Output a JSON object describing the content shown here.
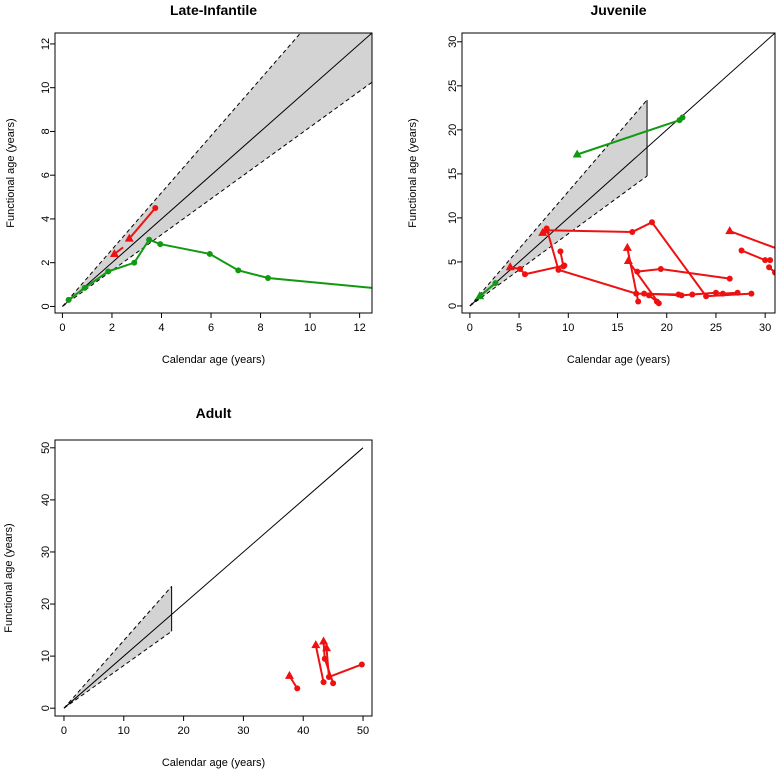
{
  "chart_data": [
    {
      "type": "line",
      "title": "Late-Infantile",
      "xlabel": "Calendar age (years)",
      "ylabel": "Functional age (years)",
      "xlim": [
        -0.3,
        12.5
      ],
      "ylim": [
        -0.3,
        12.5
      ],
      "xticks": [
        0,
        2,
        4,
        6,
        8,
        10,
        12
      ],
      "yticks": [
        0,
        2,
        4,
        6,
        8,
        10,
        12
      ],
      "reference": {
        "diagonal_to": 12.5,
        "band_slopes": [
          0.82,
          1.3
        ],
        "band_to": 12.5
      },
      "series": [
        {
          "name": "red-1",
          "color": "#EE1111",
          "marker_start": "triangle",
          "marker_end": "circle",
          "points": [
            [
              2.7,
              3.1
            ],
            [
              3.75,
              4.5
            ]
          ]
        },
        {
          "name": "red-2",
          "color": "#EE1111",
          "marker_start": "triangle",
          "marker_end": "none",
          "points": [
            [
              2.1,
              2.4
            ],
            [
              2.45,
              2.7
            ]
          ]
        },
        {
          "name": "green-1",
          "color": "#119911",
          "marker_start": "none",
          "marker_end": "none",
          "points": [
            [
              0.25,
              0.3
            ],
            [
              0.9,
              0.85
            ],
            [
              1.85,
              1.6
            ],
            [
              2.9,
              2.0
            ],
            [
              3.5,
              3.05
            ],
            [
              3.95,
              2.85
            ],
            [
              5.95,
              2.4
            ],
            [
              7.1,
              1.65
            ],
            [
              8.3,
              1.3
            ],
            [
              12.5,
              0.85
            ]
          ]
        }
      ]
    },
    {
      "type": "line",
      "title": "Juvenile",
      "xlabel": "Calendar age (years)",
      "ylabel": "Functional age (years)",
      "xlim": [
        -0.8,
        31
      ],
      "ylim": [
        -0.8,
        31
      ],
      "xticks": [
        0,
        5,
        10,
        15,
        20,
        25,
        30
      ],
      "yticks": [
        0,
        5,
        10,
        15,
        20,
        25,
        30
      ],
      "reference": {
        "diagonal_to": 31,
        "band_slopes": [
          0.82,
          1.3
        ],
        "band_to": 18
      },
      "series": [
        {
          "name": "green-1",
          "color": "#119911",
          "marker_start": "triangle",
          "marker_end": "circle",
          "points": [
            [
              10.9,
              17.2
            ],
            [
              21.3,
              21.1
            ],
            [
              21.6,
              21.4
            ]
          ]
        },
        {
          "name": "green-2",
          "color": "#119911",
          "marker_start": "triangle",
          "marker_end": "circle",
          "points": [
            [
              1.0,
              1.1
            ],
            [
              2.6,
              2.6
            ]
          ]
        },
        {
          "name": "red-1",
          "color": "#EE1111",
          "marker_start": "triangle",
          "marker_end": "circle",
          "points": [
            [
              4.1,
              4.4
            ],
            [
              5.1,
              4.2
            ],
            [
              5.6,
              3.6
            ],
            [
              9.6,
              4.6
            ]
          ]
        },
        {
          "name": "red-2",
          "color": "#EE1111",
          "marker_start": "triangle",
          "marker_end": "circle",
          "points": [
            [
              7.4,
              8.3
            ],
            [
              7.8,
              8.8
            ],
            [
              9.0,
              4.1
            ],
            [
              16.9,
              1.4
            ],
            [
              21.2,
              1.3
            ]
          ]
        },
        {
          "name": "red-3",
          "color": "#EE1111",
          "marker_start": "triangle",
          "marker_end": "circle",
          "points": [
            [
              7.7,
              8.6
            ],
            [
              16.5,
              8.4
            ],
            [
              18.5,
              9.5
            ],
            [
              24.0,
              1.1
            ],
            [
              28.6,
              1.4
            ]
          ]
        },
        {
          "name": "red-4",
          "color": "#EE1111",
          "marker_start": "none",
          "marker_end": "circle",
          "points": [
            [
              9.2,
              6.2
            ],
            [
              9.5,
              4.5
            ]
          ]
        },
        {
          "name": "red-5",
          "color": "#EE1111",
          "marker_start": "triangle",
          "marker_end": "circle",
          "points": [
            [
              16.0,
              6.6
            ],
            [
              17.1,
              0.5
            ]
          ]
        },
        {
          "name": "red-6",
          "color": "#EE1111",
          "marker_start": "triangle",
          "marker_end": "circle",
          "points": [
            [
              16.1,
              5.1
            ],
            [
              19.2,
              0.3
            ]
          ]
        },
        {
          "name": "red-7",
          "color": "#EE1111",
          "marker_start": "none",
          "marker_end": "circle",
          "points": [
            [
              17.0,
              3.9
            ],
            [
              19.4,
              4.2
            ],
            [
              26.4,
              3.1
            ]
          ]
        },
        {
          "name": "red-8",
          "color": "#EE1111",
          "marker_start": "none",
          "marker_end": "circle",
          "points": [
            [
              17.7,
              1.4
            ],
            [
              21.5,
              1.2
            ],
            [
              22.6,
              1.3
            ],
            [
              25.0,
              1.5
            ],
            [
              25.7,
              1.4
            ],
            [
              27.2,
              1.5
            ]
          ]
        },
        {
          "name": "red-9",
          "color": "#EE1111",
          "marker_start": "none",
          "marker_end": "circle",
          "points": [
            [
              18.2,
              1.2
            ],
            [
              19.0,
              0.5
            ]
          ]
        },
        {
          "name": "red-10",
          "color": "#EE1111",
          "marker_start": "triangle",
          "marker_end": "none",
          "points": [
            [
              26.4,
              8.5
            ],
            [
              31,
              6.6
            ]
          ]
        },
        {
          "name": "red-11",
          "color": "#EE1111",
          "marker_start": "none",
          "marker_end": "circle",
          "points": [
            [
              27.6,
              6.3
            ],
            [
              30.0,
              5.2
            ]
          ]
        },
        {
          "name": "red-12",
          "color": "#EE1111",
          "marker_start": "none",
          "marker_end": "circle",
          "points": [
            [
              30.4,
              4.4
            ],
            [
              31,
              3.8
            ]
          ]
        },
        {
          "name": "red-13",
          "color": "#EE1111",
          "marker_start": "none",
          "marker_end": "circle",
          "points": [
            [
              30.5,
              5.2
            ]
          ]
        }
      ]
    },
    {
      "type": "line",
      "title": "Adult",
      "xlabel": "Calendar age (years)",
      "ylabel": "Functional age (years)",
      "xlim": [
        -1.5,
        51.5
      ],
      "ylim": [
        -1.5,
        51.5
      ],
      "xticks": [
        0,
        10,
        20,
        30,
        40,
        50
      ],
      "yticks": [
        0,
        10,
        20,
        30,
        40,
        50
      ],
      "reference": {
        "diagonal_to": 50,
        "band_slopes": [
          0.82,
          1.3
        ],
        "band_to": 18
      },
      "series": [
        {
          "name": "red-1",
          "color": "#EE1111",
          "marker_start": "triangle",
          "marker_end": "circle",
          "points": [
            [
              37.7,
              6.2
            ],
            [
              39.0,
              3.8
            ]
          ]
        },
        {
          "name": "red-2",
          "color": "#EE1111",
          "marker_start": "triangle",
          "marker_end": "circle",
          "points": [
            [
              42.1,
              12.1
            ],
            [
              43.4,
              5.0
            ]
          ]
        },
        {
          "name": "red-3",
          "color": "#EE1111",
          "marker_start": "triangle",
          "marker_end": "circle",
          "points": [
            [
              43.4,
              12.8
            ],
            [
              43.6,
              9.5
            ],
            [
              45.0,
              4.8
            ]
          ]
        },
        {
          "name": "red-4",
          "color": "#EE1111",
          "marker_start": "triangle",
          "marker_end": "circle",
          "points": [
            [
              43.9,
              11.5
            ],
            [
              44.3,
              6.0
            ],
            [
              49.8,
              8.4
            ]
          ]
        }
      ]
    }
  ]
}
